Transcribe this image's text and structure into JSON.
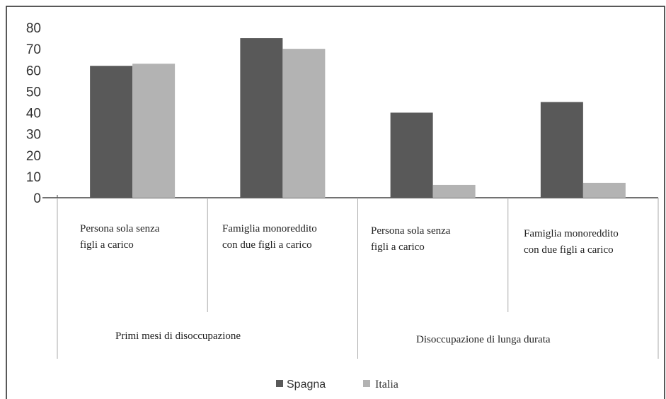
{
  "chart_data": {
    "type": "bar",
    "yticks": [
      "0",
      "10",
      "20",
      "30",
      "40",
      "50",
      "60",
      "70",
      "80"
    ],
    "ylim": [
      0,
      80
    ],
    "categories": [
      [
        "Persona sola senza",
        "figli a carico"
      ],
      [
        "Famiglia monoreddito",
        "con due figli a carico"
      ],
      [
        "Persona sola senza",
        "figli a carico"
      ],
      [
        "Famiglia monoreddito",
        "con due figli a carico"
      ]
    ],
    "groups": [
      {
        "label": "Primi mesi di disoccupazione",
        "categories": [
          0,
          1
        ]
      },
      {
        "label": "Disoccupazione di lunga durata",
        "categories": [
          2,
          3
        ]
      }
    ],
    "series": [
      {
        "name": "Spagna",
        "color": "#595959",
        "values": [
          62,
          75,
          40,
          45
        ]
      },
      {
        "name": "Italia",
        "color": "#b3b3b3",
        "values": [
          63,
          70,
          6,
          7
        ]
      }
    ],
    "legend_position": "bottom",
    "grid": false
  }
}
